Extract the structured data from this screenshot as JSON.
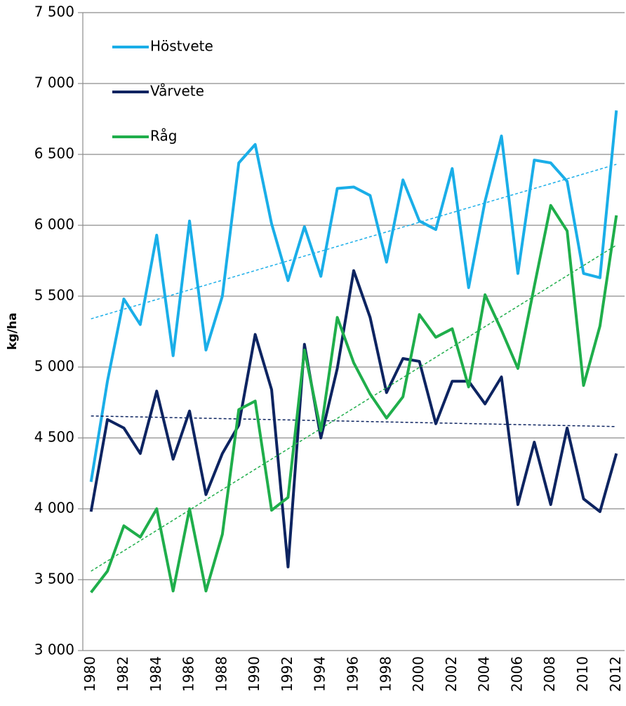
{
  "chart_data": {
    "type": "line",
    "y_label": "kg/ha",
    "categories": [
      1980,
      null,
      1982,
      null,
      1984,
      null,
      1986,
      null,
      1988,
      null,
      1990,
      null,
      1992,
      null,
      1994,
      null,
      1996,
      null,
      1998,
      null,
      2000,
      null,
      2002,
      null,
      2004,
      null,
      2006,
      null,
      2008,
      null,
      2010,
      null,
      2012
    ],
    "ylim": [
      3000,
      7500
    ],
    "yticks": [
      {
        "value": 3000,
        "label": "3 000"
      },
      {
        "value": 3500,
        "label": "3 500"
      },
      {
        "value": 4000,
        "label": "4 000"
      },
      {
        "value": 4500,
        "label": "4 500"
      },
      {
        "value": 5000,
        "label": "5 000"
      },
      {
        "value": 5500,
        "label": "5 500"
      },
      {
        "value": 6000,
        "label": "6 000"
      },
      {
        "value": 6500,
        "label": "6 500"
      },
      {
        "value": 7000,
        "label": "7 000"
      },
      {
        "value": 7500,
        "label": "7 500"
      }
    ],
    "grid": true,
    "legend": "top-left",
    "series": [
      {
        "name": "Höstvete",
        "color": "#1aaee8",
        "values": [
          4190,
          4900,
          5480,
          5300,
          5930,
          5080,
          6030,
          5120,
          5500,
          6440,
          6570,
          6010,
          5610,
          5990,
          5640,
          6260,
          6270,
          6210,
          5740,
          6320,
          6030,
          5970,
          6400,
          5560,
          6170,
          6630,
          5660,
          6460,
          6440,
          6310,
          5660,
          5630,
          6810
        ],
        "trend": [
          5340,
          6430
        ]
      },
      {
        "name": "Vårvete",
        "color": "#0d2461",
        "values": [
          3980,
          4630,
          4570,
          4390,
          4830,
          4350,
          4690,
          4100,
          4390,
          4590,
          5230,
          4840,
          3590,
          5160,
          4500,
          4990,
          5680,
          5350,
          4820,
          5060,
          5040,
          4600,
          4900,
          4900,
          4740,
          4930,
          4030,
          4470,
          4030,
          4570,
          4070,
          3980,
          4390
        ],
        "trend": [
          4655,
          4580
        ]
      },
      {
        "name": "Råg",
        "color": "#1fae4b",
        "values": [
          3410,
          3560,
          3880,
          3800,
          4000,
          3420,
          4000,
          3420,
          3820,
          4700,
          4760,
          3990,
          4080,
          5120,
          4550,
          5350,
          5030,
          4810,
          4640,
          4790,
          5370,
          5210,
          5270,
          4860,
          5510,
          5260,
          4990,
          5570,
          6140,
          5960,
          4870,
          5290,
          6070
        ],
        "trend": [
          3560,
          5860
        ]
      }
    ]
  }
}
